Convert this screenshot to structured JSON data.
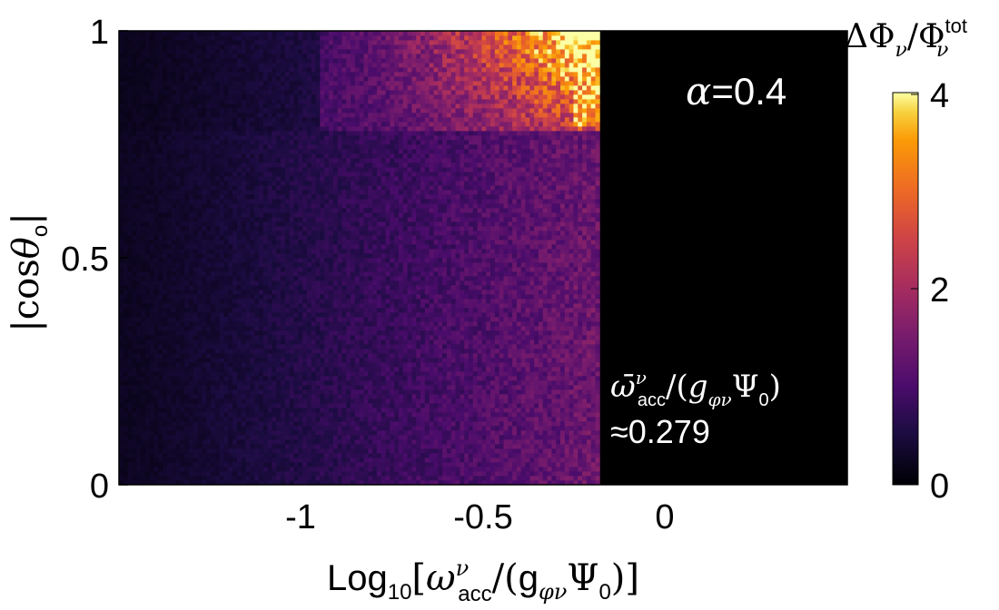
{
  "chart_data": {
    "type": "heatmap",
    "title": "",
    "xlabel": "Log10[ωνacc/(gφνΨ0)]",
    "ylabel": "|cosθo|",
    "xlim": [
      -1.5,
      0.5
    ],
    "ylim": [
      0,
      1
    ],
    "x_ticks": [
      "-1",
      "-0.5",
      "0"
    ],
    "x_tick_values": [
      -1,
      -0.5,
      0
    ],
    "y_ticks": [
      "0",
      "0.5",
      "1"
    ],
    "y_tick_values": [
      0,
      0.5,
      1
    ],
    "colorbar": {
      "label": "ΔΦν/Φνtot",
      "ticks": [
        "0",
        "2",
        "4"
      ],
      "tick_values": [
        0,
        2,
        4
      ],
      "range": [
        0,
        4
      ],
      "colormap": "inferno"
    },
    "cutoff_x": -0.18,
    "regions": [
      {
        "x_range": [
          -1.5,
          -0.18
        ],
        "y_range": [
          0,
          0.77
        ],
        "value_left": 0.3,
        "value_right": 1.4
      },
      {
        "x_range": [
          -0.95,
          -0.18
        ],
        "y_range": [
          0.77,
          1.0
        ],
        "value_left": 1.0,
        "value_right": 4.0
      },
      {
        "x_range": [
          -0.18,
          0.5
        ],
        "y_range": [
          0,
          1
        ],
        "value": 0
      }
    ],
    "annotations": {
      "alpha": "α=0.4",
      "omega_bar": "ω̄νacc/(gφνΨ0)",
      "omega_bar_value": "≈0.279"
    }
  }
}
